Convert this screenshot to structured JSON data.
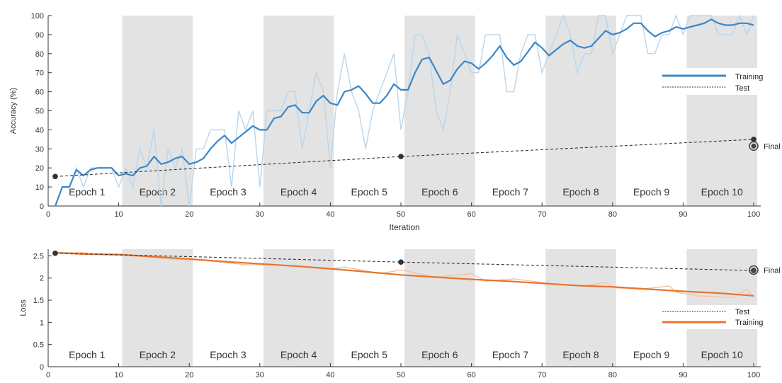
{
  "colors": {
    "training_acc": "#3b86c8",
    "training_acc_raw": "#b9d6ec",
    "training_loss": "#e8742c",
    "training_loss_raw": "#f2c4a5",
    "test": "#333333",
    "epoch_shade": "#e3e3e3",
    "axis": "#333333"
  },
  "x_ticks": [
    0,
    10,
    20,
    30,
    40,
    50,
    60,
    70,
    80,
    90,
    100
  ],
  "epoch_labels": [
    "Epoch 1",
    "Epoch 2",
    "Epoch 3",
    "Epoch 4",
    "Epoch 5",
    "Epoch 6",
    "Epoch 7",
    "Epoch 8",
    "Epoch 9",
    "Epoch 10"
  ],
  "chart_data": [
    {
      "type": "line",
      "xlabel": "Iteration",
      "ylabel": "Accuracy (%)",
      "xlim": [
        0,
        101
      ],
      "ylim": [
        0,
        100
      ],
      "y_ticks": [
        0,
        10,
        20,
        30,
        40,
        50,
        60,
        70,
        80,
        90,
        100
      ],
      "grid": false,
      "legend_position": "right",
      "final_label": "Final",
      "series": [
        {
          "name": "Training",
          "kind": "smoothed",
          "x": [
            1,
            2,
            3,
            4,
            5,
            6,
            7,
            8,
            9,
            10,
            11,
            12,
            13,
            14,
            15,
            16,
            17,
            18,
            19,
            20,
            21,
            22,
            23,
            24,
            25,
            26,
            27,
            28,
            29,
            30,
            31,
            32,
            33,
            34,
            35,
            36,
            37,
            38,
            39,
            40,
            41,
            42,
            43,
            44,
            45,
            46,
            47,
            48,
            49,
            50,
            51,
            52,
            53,
            54,
            55,
            56,
            57,
            58,
            59,
            60,
            61,
            62,
            63,
            64,
            65,
            66,
            67,
            68,
            69,
            70,
            71,
            72,
            73,
            74,
            75,
            76,
            77,
            78,
            79,
            80,
            81,
            82,
            83,
            84,
            85,
            86,
            87,
            88,
            89,
            90,
            91,
            92,
            93,
            94,
            95,
            96,
            97,
            98,
            99,
            100
          ],
          "values": [
            0,
            10,
            10,
            19,
            16,
            19,
            20,
            20,
            20,
            16,
            17,
            16,
            20,
            21,
            26,
            22,
            23,
            25,
            26,
            22,
            23,
            25,
            30,
            34,
            37,
            33,
            36,
            39,
            42,
            40,
            40,
            46,
            47,
            52,
            53,
            49,
            49,
            55,
            58,
            54,
            53,
            60,
            61,
            63,
            59,
            54,
            54,
            58,
            64,
            61,
            61,
            70,
            77,
            78,
            71,
            64,
            66,
            72,
            76,
            75,
            72,
            75,
            79,
            84,
            78,
            74,
            76,
            81,
            86,
            83,
            79,
            82,
            85,
            87,
            84,
            83,
            84,
            88,
            92,
            90,
            91,
            93,
            96,
            96,
            92,
            89,
            91,
            92,
            94,
            93,
            94,
            95,
            96,
            98,
            96,
            95,
            95,
            96,
            96,
            95
          ]
        },
        {
          "name": "Training (raw)",
          "kind": "raw",
          "x": [
            1,
            2,
            3,
            4,
            5,
            6,
            7,
            8,
            9,
            10,
            11,
            12,
            13,
            14,
            15,
            16,
            17,
            18,
            19,
            20,
            21,
            22,
            23,
            24,
            25,
            26,
            27,
            28,
            29,
            30,
            31,
            32,
            33,
            34,
            35,
            36,
            37,
            38,
            39,
            40,
            41,
            42,
            43,
            44,
            45,
            46,
            47,
            48,
            49,
            50,
            51,
            52,
            53,
            54,
            55,
            56,
            57,
            58,
            59,
            60,
            61,
            62,
            63,
            64,
            65,
            66,
            67,
            68,
            69,
            70,
            71,
            72,
            73,
            74,
            75,
            76,
            77,
            78,
            79,
            80,
            81,
            82,
            83,
            84,
            85,
            86,
            87,
            88,
            89,
            90,
            91,
            92,
            93,
            94,
            95,
            96,
            97,
            98,
            99,
            100
          ],
          "values": [
            0,
            10,
            10,
            20,
            10,
            20,
            20,
            20,
            20,
            10,
            20,
            10,
            30,
            20,
            40,
            0,
            30,
            20,
            30,
            0,
            30,
            30,
            40,
            40,
            40,
            10,
            50,
            40,
            50,
            10,
            50,
            50,
            50,
            60,
            60,
            30,
            50,
            70,
            60,
            20,
            60,
            80,
            60,
            50,
            30,
            50,
            60,
            70,
            80,
            40,
            60,
            90,
            90,
            80,
            50,
            40,
            60,
            90,
            80,
            70,
            70,
            90,
            90,
            90,
            60,
            60,
            80,
            90,
            90,
            70,
            80,
            90,
            100,
            90,
            70,
            80,
            80,
            100,
            100,
            80,
            90,
            100,
            100,
            100,
            80,
            80,
            90,
            90,
            100,
            90,
            100,
            100,
            100,
            100,
            90,
            90,
            90,
            100,
            90,
            100
          ]
        },
        {
          "name": "Test",
          "kind": "validation",
          "x": [
            1,
            50,
            100
          ],
          "values": [
            15.5,
            26,
            35
          ]
        },
        {
          "name": "Final",
          "kind": "final",
          "x": [
            100
          ],
          "values": [
            31.5
          ]
        }
      ]
    },
    {
      "type": "line",
      "xlabel": "",
      "ylabel": "Loss",
      "xlim": [
        0,
        101
      ],
      "ylim": [
        0,
        2.65
      ],
      "y_ticks": [
        0,
        0.5,
        1,
        1.5,
        2,
        2.5
      ],
      "grid": false,
      "legend_position": "right",
      "final_label": "Final",
      "series": [
        {
          "name": "Training",
          "kind": "smoothed",
          "x": [
            1,
            5,
            10,
            15,
            20,
            25,
            30,
            35,
            40,
            45,
            50,
            55,
            60,
            65,
            70,
            75,
            80,
            85,
            90,
            95,
            100
          ],
          "values": [
            2.57,
            2.54,
            2.53,
            2.48,
            2.43,
            2.37,
            2.32,
            2.27,
            2.21,
            2.14,
            2.07,
            2.02,
            1.97,
            1.93,
            1.88,
            1.83,
            1.8,
            1.75,
            1.7,
            1.66,
            1.6
          ]
        },
        {
          "name": "Training (raw)",
          "kind": "raw",
          "x": [
            1,
            5,
            8,
            12,
            18,
            22,
            28,
            32,
            40,
            42,
            47,
            50,
            55,
            60,
            62,
            66,
            72,
            76,
            79,
            80,
            84,
            88,
            89,
            92,
            97,
            99,
            100
          ],
          "values": [
            2.57,
            2.57,
            2.52,
            2.5,
            2.42,
            2.4,
            2.3,
            2.3,
            2.2,
            2.25,
            2.1,
            2.18,
            2.02,
            2.1,
            1.93,
            1.98,
            1.86,
            1.82,
            1.9,
            1.78,
            1.75,
            1.82,
            1.68,
            1.6,
            1.56,
            1.75,
            1.56
          ]
        },
        {
          "name": "Test",
          "kind": "validation",
          "x": [
            1,
            50,
            100
          ],
          "values": [
            2.56,
            2.36,
            2.17
          ]
        },
        {
          "name": "Final",
          "kind": "final",
          "x": [
            100
          ],
          "values": [
            2.18
          ]
        }
      ]
    }
  ],
  "legend_acc": {
    "training": "Training",
    "test": "Test"
  },
  "legend_loss": {
    "test": "Test",
    "training": "Training"
  }
}
